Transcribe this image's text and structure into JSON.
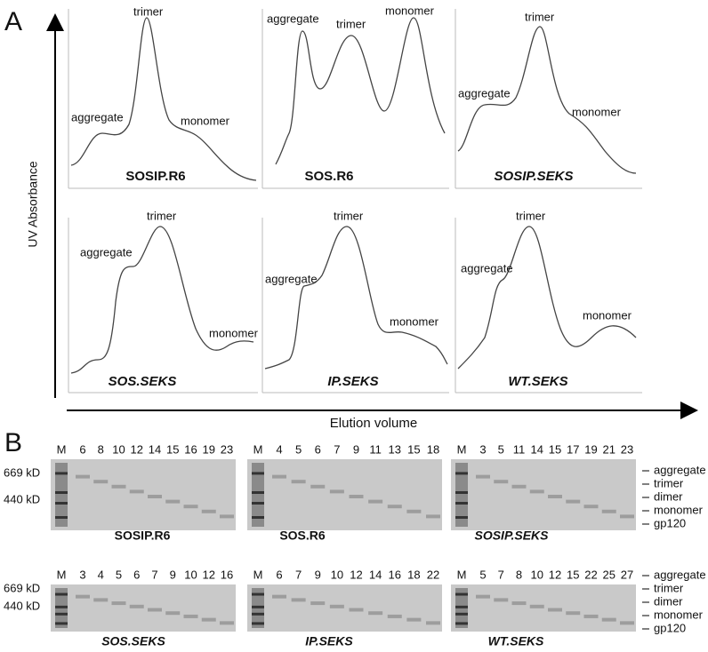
{
  "panel_a": {
    "letter": "A",
    "y_axis_label": "UV Absorbance",
    "x_axis_label": "Elution volume",
    "plots": [
      {
        "name": "SOSIP.R6",
        "italic": false,
        "labels": [
          "aggregate",
          "trimer",
          "monomer"
        ]
      },
      {
        "name": "SOS.R6",
        "italic": false,
        "labels": [
          "aggregate",
          "trimer",
          "monomer"
        ]
      },
      {
        "name": "SOSIP.SEKS",
        "italic": true,
        "labels": [
          "aggregate",
          "trimer",
          "monomer"
        ]
      },
      {
        "name": "SOS.SEKS",
        "italic": true,
        "labels": [
          "aggregate",
          "trimer",
          "monomer"
        ]
      },
      {
        "name": "IP.SEKS",
        "italic": true,
        "labels": [
          "aggregate",
          "trimer",
          "monomer"
        ]
      },
      {
        "name": "WT.SEKS",
        "italic": true,
        "labels": [
          "aggregate",
          "trimer",
          "monomer"
        ]
      }
    ]
  },
  "panel_b": {
    "letter": "B",
    "markers": [
      "669 kD",
      "440 kD"
    ],
    "bands": [
      "aggregate",
      "trimer",
      "dimer",
      "monomer",
      "gp120"
    ],
    "gels": [
      {
        "name": "SOSIP.R6",
        "italic": false,
        "lanes": [
          "M",
          "6",
          "8",
          "10",
          "12",
          "14",
          "15",
          "16",
          "19",
          "23"
        ]
      },
      {
        "name": "SOS.R6",
        "italic": false,
        "lanes": [
          "M",
          "4",
          "5",
          "6",
          "7",
          "9",
          "11",
          "13",
          "15",
          "18"
        ]
      },
      {
        "name": "SOSIP.SEKS",
        "italic": true,
        "lanes": [
          "M",
          "3",
          "5",
          "11",
          "14",
          "15",
          "17",
          "19",
          "21",
          "23"
        ]
      },
      {
        "name": "SOS.SEKS",
        "italic": true,
        "lanes": [
          "M",
          "3",
          "4",
          "5",
          "6",
          "7",
          "9",
          "10",
          "12",
          "16"
        ]
      },
      {
        "name": "IP.SEKS",
        "italic": true,
        "lanes": [
          "M",
          "6",
          "7",
          "9",
          "10",
          "12",
          "14",
          "16",
          "18",
          "22"
        ]
      },
      {
        "name": "WT.SEKS",
        "italic": true,
        "lanes": [
          "M",
          "5",
          "7",
          "8",
          "10",
          "12",
          "15",
          "22",
          "25",
          "27"
        ]
      }
    ]
  }
}
